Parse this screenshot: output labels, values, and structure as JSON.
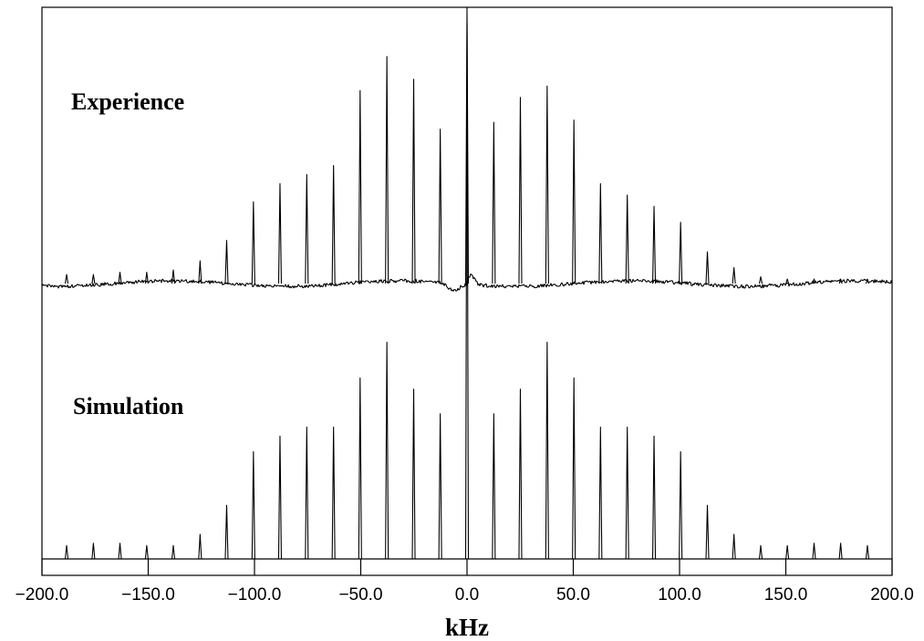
{
  "chart_data": {
    "type": "line",
    "xlabel": "kHz",
    "xlim": [
      -200.0,
      200.0
    ],
    "x_ticks": [
      "−200.0",
      "−150.0",
      "−100.0",
      "−50.0",
      "0.0",
      "50.0",
      "100.0",
      "150.0",
      "200.0"
    ],
    "x_tick_values": [
      -200,
      -150,
      -100,
      -50,
      0,
      50,
      100,
      150,
      200
    ],
    "series": [
      {
        "name": "Experience",
        "baseline_noise": true,
        "peak_positions_khz": [
          -188.4,
          -175.8,
          -163.3,
          -150.7,
          -138.2,
          -125.6,
          -113.1,
          -100.5,
          -88.0,
          -75.4,
          -62.8,
          -50.3,
          -37.7,
          -25.1,
          -12.6,
          0.0,
          12.6,
          25.1,
          37.7,
          50.3,
          62.8,
          75.4,
          88.0,
          100.5,
          113.1,
          125.6,
          138.2,
          150.7,
          163.3,
          175.8,
          188.4
        ],
        "peak_heights_rel": [
          0.04,
          0.04,
          0.05,
          0.05,
          0.06,
          0.1,
          0.19,
          0.36,
          0.44,
          0.48,
          0.52,
          0.85,
          1.0,
          0.9,
          0.68,
          1.25,
          0.71,
          0.82,
          0.87,
          0.72,
          0.44,
          0.39,
          0.34,
          0.27,
          0.14,
          0.07,
          0.03,
          0.02,
          0.02,
          0.02,
          0.02
        ]
      },
      {
        "name": "Simulation",
        "baseline_noise": false,
        "peak_positions_khz": [
          -188.4,
          -175.8,
          -163.3,
          -150.7,
          -138.2,
          -125.6,
          -113.1,
          -100.5,
          -88.0,
          -75.4,
          -62.8,
          -50.3,
          -37.7,
          -25.1,
          -12.6,
          0.0,
          12.6,
          25.1,
          37.7,
          50.3,
          62.8,
          75.4,
          88.0,
          100.5,
          113.1,
          125.6,
          138.2,
          150.7,
          163.3,
          175.8,
          188.4
        ],
        "peak_heights_rel": [
          0.06,
          0.07,
          0.07,
          0.06,
          0.06,
          0.11,
          0.24,
          0.48,
          0.55,
          0.59,
          0.59,
          0.81,
          0.97,
          0.76,
          0.65,
          2.4,
          0.65,
          0.76,
          0.97,
          0.81,
          0.59,
          0.59,
          0.55,
          0.48,
          0.24,
          0.11,
          0.06,
          0.06,
          0.07,
          0.07,
          0.06
        ]
      }
    ],
    "grid": false,
    "legend": "none"
  }
}
